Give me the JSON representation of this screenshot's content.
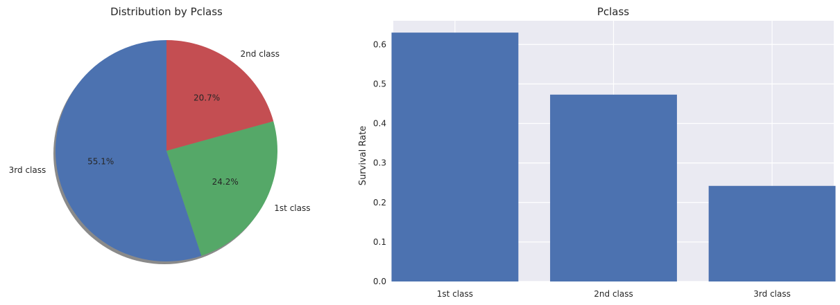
{
  "chart_data": [
    {
      "type": "pie",
      "title": "Distribution by Pclass",
      "categories": [
        "3rd class",
        "1st class",
        "2nd class"
      ],
      "values": [
        55.1,
        24.2,
        20.7
      ],
      "value_labels": [
        "55.1%",
        "24.2%",
        "20.7%"
      ],
      "colors": [
        "#4c72b0",
        "#55a868",
        "#c44e52"
      ],
      "shadow": true,
      "start_angle_deg": 90
    },
    {
      "type": "bar",
      "title": "Pclass",
      "categories": [
        "1st class",
        "2nd class",
        "3rd class"
      ],
      "values": [
        0.63,
        0.473,
        0.242
      ],
      "xlabel": "",
      "ylabel": "Survival Rate",
      "ylim": [
        0,
        0.66
      ],
      "yticks": [
        "0.0",
        "0.1",
        "0.2",
        "0.3",
        "0.4",
        "0.5",
        "0.6"
      ],
      "bar_color": "#4c72b0",
      "background": "#eaeaf2",
      "grid": true
    }
  ]
}
